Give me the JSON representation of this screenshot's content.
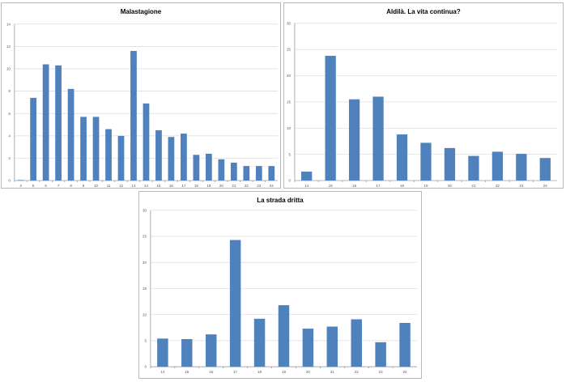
{
  "colors": {
    "bar": "#4f81bd",
    "grid": "#d9d9d9",
    "border": "#b8b8b8"
  },
  "chart_data": [
    {
      "type": "bar",
      "title": "Malastagione",
      "categories": [
        "4",
        "5",
        "6",
        "7",
        "8",
        "9",
        "10",
        "11",
        "12",
        "13",
        "14",
        "15",
        "16",
        "17",
        "18",
        "19",
        "20",
        "21",
        "22",
        "23",
        "24"
      ],
      "series": [
        {
          "values": [
            0.05,
            7.4,
            10.4,
            10.3,
            8.2,
            5.7,
            5.7,
            4.6,
            4.0,
            11.6,
            6.9,
            4.5,
            3.9,
            4.2,
            2.3,
            2.4,
            1.9,
            1.6,
            1.3,
            1.3,
            1.3
          ]
        }
      ],
      "ylim": [
        0,
        14
      ],
      "yticks": [
        "0",
        "2",
        "4",
        "6",
        "8",
        "10",
        "12",
        "14"
      ],
      "xlabel": "",
      "ylabel": "",
      "grid": true,
      "legend": "none"
    },
    {
      "type": "bar",
      "title": "Aldilà. La vita continua?",
      "categories": [
        "14",
        "15",
        "16",
        "17",
        "18",
        "19",
        "20",
        "21",
        "22",
        "23",
        "24"
      ],
      "series": [
        {
          "values": [
            1.7,
            23.8,
            15.5,
            16.0,
            8.8,
            7.2,
            6.2,
            4.7,
            5.5,
            5.1,
            4.3
          ]
        }
      ],
      "ylim": [
        0,
        30
      ],
      "yticks": [
        "0",
        "5",
        "10",
        "15",
        "20",
        "25",
        "30"
      ],
      "xlabel": "",
      "ylabel": "",
      "grid": true,
      "legend": "none"
    },
    {
      "type": "bar",
      "title": "La strada dritta",
      "categories": [
        "14",
        "15",
        "16",
        "17",
        "18",
        "19",
        "20",
        "21",
        "22",
        "23",
        "24"
      ],
      "series": [
        {
          "values": [
            5.4,
            5.3,
            6.2,
            24.3,
            9.2,
            11.8,
            7.3,
            7.7,
            9.1,
            4.7,
            8.4
          ]
        }
      ],
      "ylim": [
        0,
        30
      ],
      "yticks": [
        "0",
        "5",
        "10",
        "15",
        "20",
        "25",
        "30"
      ],
      "xlabel": "",
      "ylabel": "",
      "grid": true,
      "legend": "none"
    }
  ]
}
